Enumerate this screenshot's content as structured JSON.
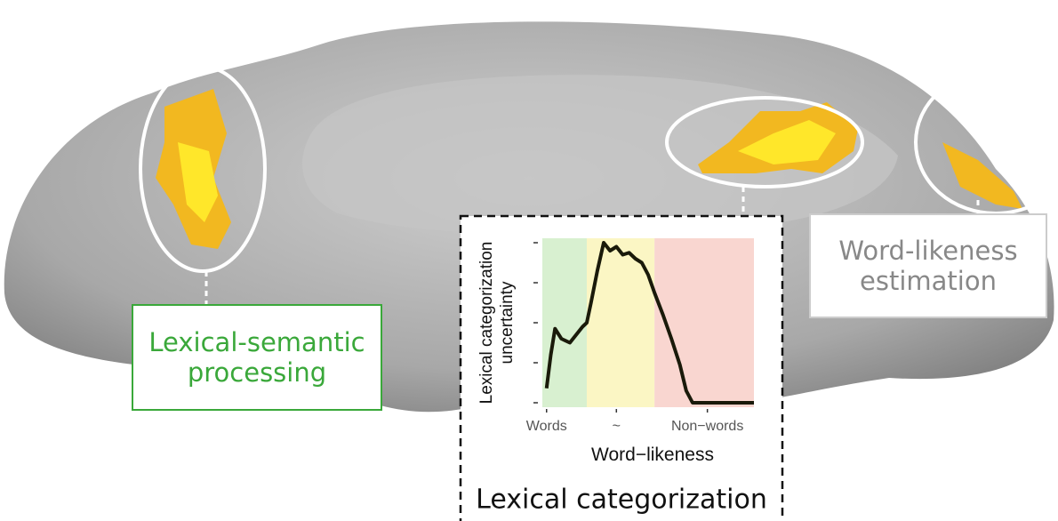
{
  "labels": {
    "left": "Lexical-semantic processing",
    "right": "Word-likeness estimation",
    "center": "Lexical categorization"
  },
  "inset": {
    "type": "line",
    "ylabel": [
      "Lexical categorization",
      "uncertainty"
    ],
    "xlabel": "Word−likeness",
    "xlim": [
      0,
      100
    ],
    "ylim": [
      0,
      4
    ],
    "xticks": [
      {
        "value": 2,
        "label": "Words"
      },
      {
        "value": 35,
        "label": "~"
      },
      {
        "value": 78,
        "label": "Non−words"
      }
    ],
    "yticks": [
      0,
      1,
      2,
      3,
      4
    ],
    "regions": [
      {
        "start": 0,
        "end": 21,
        "color": "#d8f0d0"
      },
      {
        "start": 21,
        "end": 53,
        "color": "#fbf6c4"
      },
      {
        "start": 53,
        "end": 100,
        "color": "#f9d6d0"
      }
    ],
    "color": "#1a1a0a",
    "x": [
      2,
      4,
      6,
      9,
      13,
      16,
      19,
      21,
      23,
      26,
      29,
      32,
      35,
      38,
      41,
      44,
      47,
      50,
      53,
      57,
      61,
      65,
      68,
      71,
      80,
      90,
      100
    ],
    "values": [
      0.36,
      1.2,
      1.85,
      1.6,
      1.5,
      1.7,
      1.9,
      2.0,
      2.5,
      3.3,
      4.0,
      3.8,
      3.9,
      3.7,
      3.75,
      3.6,
      3.5,
      3.2,
      2.75,
      2.2,
      1.6,
      0.95,
      0.3,
      0,
      0,
      0,
      0
    ]
  }
}
